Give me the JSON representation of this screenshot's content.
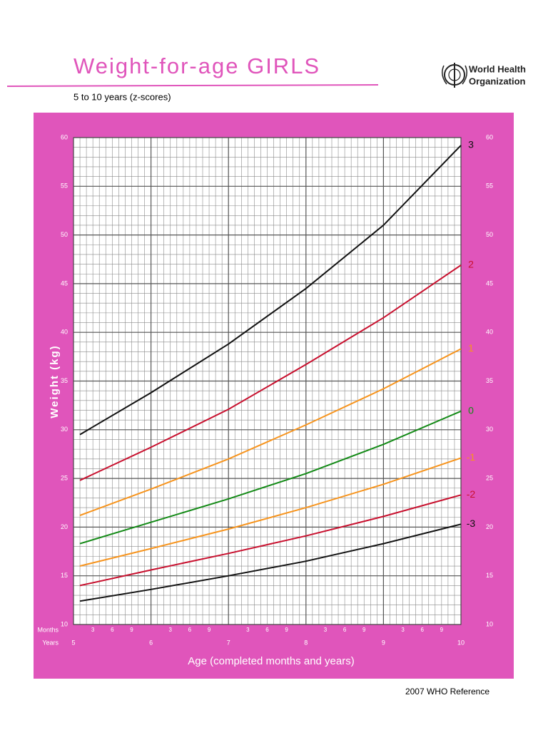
{
  "chart_data": {
    "type": "line",
    "title": "Weight-for-age  GIRLS",
    "subtitle": "5 to 10 years (z-scores)",
    "y_label": "Weight (kg)",
    "x_label": "Age (completed months and years)",
    "months_label": "Months",
    "years_label": "Years",
    "x": [
      5.083,
      6,
      7,
      8,
      9,
      10
    ],
    "series": [
      {
        "name": "3",
        "color": "#111111",
        "values": [
          29.5,
          33.8,
          38.8,
          44.5,
          51.0,
          59.2
        ]
      },
      {
        "name": "2",
        "color": "#c8102e",
        "values": [
          24.8,
          28.2,
          32.1,
          36.7,
          41.5,
          46.9
        ]
      },
      {
        "name": "1",
        "color": "#f7941d",
        "values": [
          21.2,
          23.9,
          27.0,
          30.5,
          34.2,
          38.3
        ]
      },
      {
        "name": "0",
        "color": "#138a16",
        "values": [
          18.3,
          20.5,
          22.9,
          25.5,
          28.5,
          31.9
        ]
      },
      {
        "name": "-1",
        "color": "#f7941d",
        "values": [
          16.0,
          17.8,
          19.8,
          22.0,
          24.4,
          27.1
        ]
      },
      {
        "name": "-2",
        "color": "#c8102e",
        "values": [
          14.0,
          15.6,
          17.3,
          19.1,
          21.1,
          23.3
        ]
      },
      {
        "name": "-3",
        "color": "#111111",
        "values": [
          12.4,
          13.6,
          15.0,
          16.5,
          18.3,
          20.3
        ]
      }
    ],
    "xlim": [
      5,
      10
    ],
    "xticks": [
      5,
      6,
      7,
      8,
      9,
      10
    ],
    "month_ticks": [
      {
        "value": 5.25,
        "label": "3"
      },
      {
        "value": 5.5,
        "label": "6"
      },
      {
        "value": 5.75,
        "label": "9"
      },
      {
        "value": 6.25,
        "label": "3"
      },
      {
        "value": 6.5,
        "label": "6"
      },
      {
        "value": 6.75,
        "label": "9"
      },
      {
        "value": 7.25,
        "label": "3"
      },
      {
        "value": 7.5,
        "label": "6"
      },
      {
        "value": 7.75,
        "label": "9"
      },
      {
        "value": 8.25,
        "label": "3"
      },
      {
        "value": 8.5,
        "label": "6"
      },
      {
        "value": 8.75,
        "label": "9"
      },
      {
        "value": 9.25,
        "label": "3"
      },
      {
        "value": 9.5,
        "label": "6"
      },
      {
        "value": 9.75,
        "label": "9"
      }
    ],
    "ylim": [
      10,
      60
    ],
    "yticks": [
      10,
      15,
      20,
      25,
      30,
      35,
      40,
      45,
      50,
      55,
      60
    ],
    "grid": true
  },
  "logo_text": [
    "World Health",
    "Organization"
  ],
  "footer": "2007 WHO Reference"
}
